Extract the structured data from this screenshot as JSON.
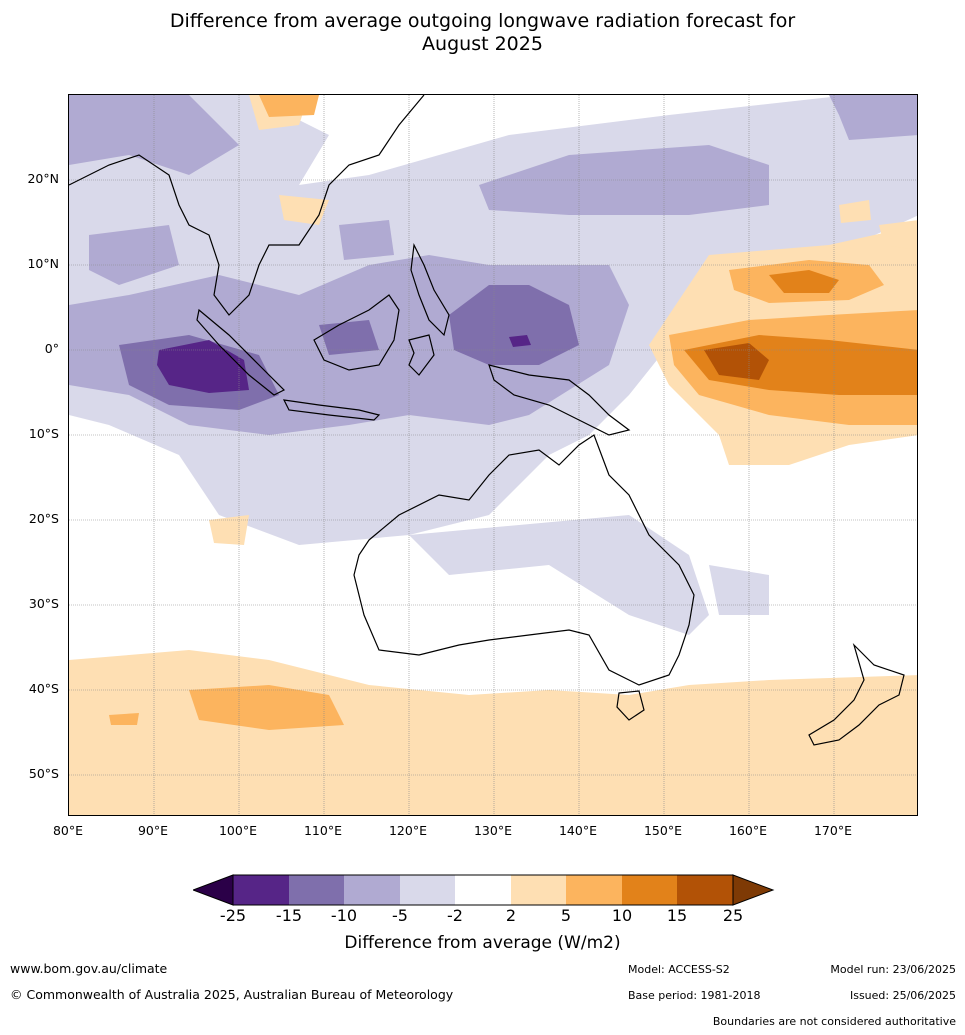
{
  "title_line1": "Difference from average outgoing longwave radiation forecast for",
  "title_line2": "August 2025",
  "lat_labels": [
    "20°N",
    "10°N",
    "0°",
    "10°S",
    "20°S",
    "30°S",
    "40°S",
    "50°S"
  ],
  "lon_labels": [
    "80°E",
    "90°E",
    "100°E",
    "110°E",
    "120°E",
    "130°E",
    "140°E",
    "150°E",
    "160°E",
    "170°E"
  ],
  "colorbar": {
    "ticks": [
      "-25",
      "-15",
      "-10",
      "-5",
      "-2",
      "2",
      "5",
      "10",
      "15",
      "25"
    ],
    "colors": [
      "#562587",
      "#7f6fac",
      "#b0aad2",
      "#d9d9ea",
      "#ffffff",
      "#fedfb3",
      "#fcb45e",
      "#e2821a",
      "#b25206"
    ],
    "under_color": "#2b0048",
    "over_color": "#7e3a05",
    "label": "Difference from average (W/m2)"
  },
  "footer": {
    "url": "www.bom.gov.au/climate",
    "copyright": "© Commonwealth of Australia 2025, Australian Bureau of Meteorology",
    "model": "Model: ACCESS-S2",
    "base_period": "Base period: 1981-2018",
    "model_run": "Model run: 23/06/2025",
    "issued": "Issued: 25/06/2025",
    "boundaries": "Boundaries are not considered authoritative"
  }
}
